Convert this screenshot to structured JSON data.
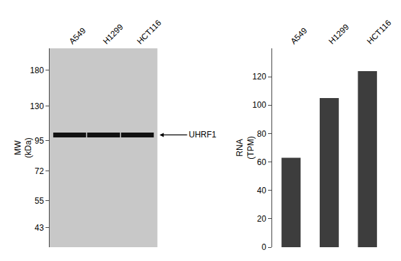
{
  "chart_data": [
    {
      "type": "scatter",
      "categories": [
        "A549",
        "H1299",
        "HCT116"
      ],
      "values": [
        100,
        100,
        100
      ],
      "color": "#111111",
      "marker": "line-ew",
      "log": "y",
      "ylabel": "MW\n(kDa)",
      "ylim": [
        36,
        220
      ],
      "yticks": [
        180,
        130,
        95,
        72,
        55,
        43
      ],
      "annotations": [
        {
          "text": "UHRF1",
          "y": 100
        }
      ],
      "grid": false
    },
    {
      "type": "bar",
      "categories": [
        "A549",
        "H1299",
        "HCT116"
      ],
      "values": [
        63,
        105,
        124
      ],
      "color": "#3d3d3d",
      "ylabel": "RNA\n(TPM)",
      "ylim": [
        0,
        140
      ],
      "yticks": [
        0,
        20,
        40,
        60,
        80,
        100,
        120
      ],
      "grid": false
    }
  ]
}
